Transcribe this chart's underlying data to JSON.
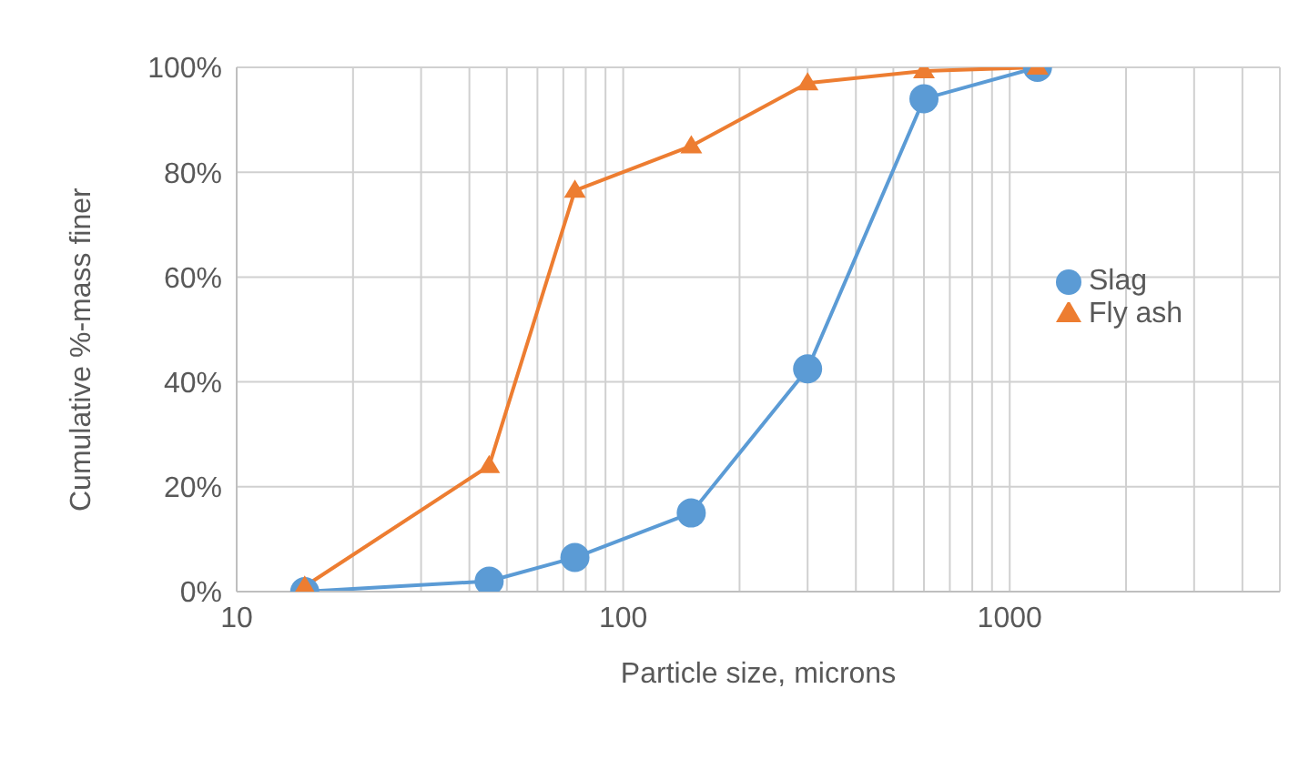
{
  "chart_data": {
    "type": "line",
    "xlabel": "Particle size, microns",
    "ylabel": "Cumulative %-mass finer",
    "log": "x",
    "grid": true,
    "legend": "right",
    "line_style": "solid",
    "x": [
      15,
      45,
      75,
      150,
      300,
      600,
      1180
    ],
    "xlim": [
      10,
      5000
    ],
    "xticks": [
      10,
      {
        "value": 20,
        "label": null
      },
      {
        "value": 30,
        "label": null
      },
      {
        "value": 40,
        "label": null
      },
      {
        "value": 50,
        "label": null
      },
      {
        "value": 60,
        "label": null
      },
      {
        "value": 70,
        "label": null
      },
      {
        "value": 80,
        "label": null
      },
      {
        "value": 90,
        "label": null
      },
      100,
      {
        "value": 200,
        "label": null
      },
      {
        "value": 300,
        "label": null
      },
      {
        "value": 400,
        "label": null
      },
      {
        "value": 500,
        "label": null
      },
      {
        "value": 600,
        "label": null
      },
      {
        "value": 700,
        "label": null
      },
      {
        "value": 800,
        "label": null
      },
      {
        "value": 900,
        "label": null
      },
      1000,
      {
        "value": 2000,
        "label": null
      },
      {
        "value": 3000,
        "label": null
      },
      {
        "value": 4000,
        "label": null
      },
      {
        "value": 5000,
        "label": null
      }
    ],
    "ylim": [
      0,
      100
    ],
    "yticks": [
      {
        "value": 0,
        "label": "0%"
      },
      {
        "value": 20,
        "label": "20%"
      },
      {
        "value": 40,
        "label": "40%"
      },
      {
        "value": 60,
        "label": "60%"
      },
      {
        "value": 80,
        "label": "80%"
      },
      {
        "value": 100,
        "label": "100%"
      }
    ],
    "series": [
      {
        "name": "Slag",
        "color": "#5b9bd5",
        "marker": "circle",
        "values": [
          0,
          2,
          6.5,
          15,
          42.5,
          94,
          100
        ]
      },
      {
        "name": "Fly ash",
        "color": "#ed7d31",
        "marker": "triangle",
        "values": [
          1,
          24,
          76.5,
          85,
          97,
          99.3,
          100
        ]
      }
    ]
  }
}
